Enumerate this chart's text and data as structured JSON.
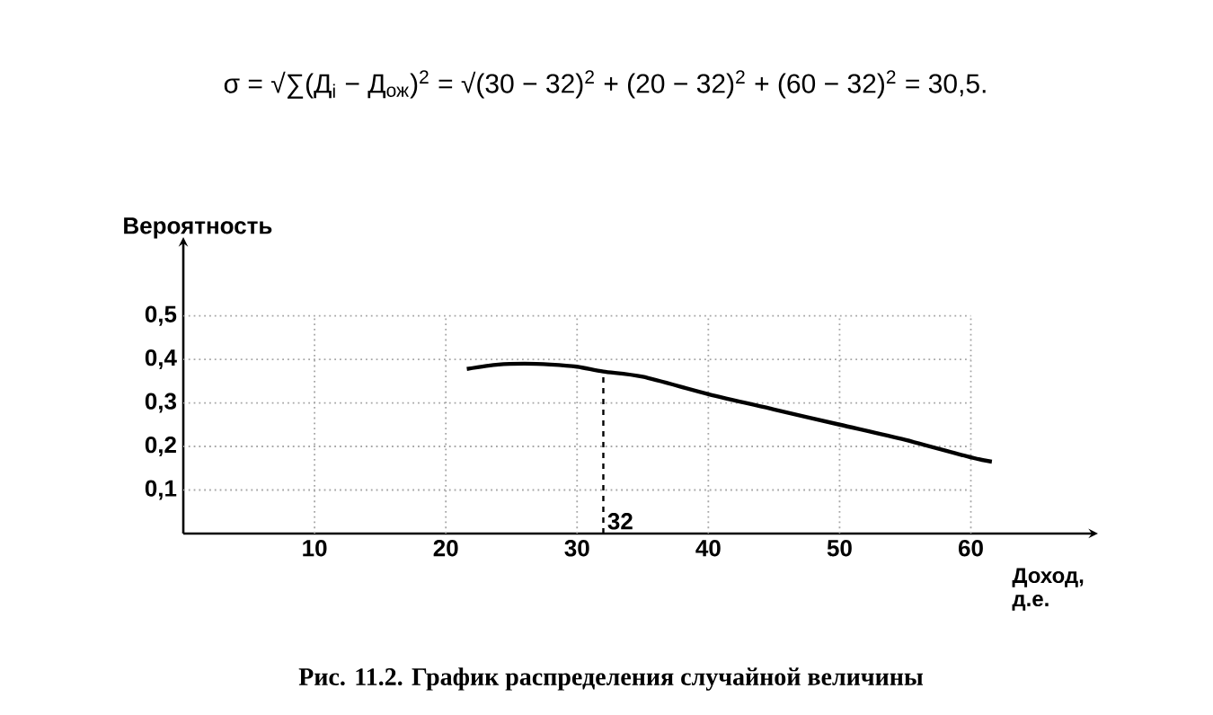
{
  "chart_data": {
    "type": "line",
    "annotations": [
      "σ = √∑(Д$_{i}$ − Д$_{ож}$)$^{2}$ = √(30 − 32)$^{2}$ + (20 − 32)$^{2}$ + (60 − 32)$^{2}$ = 30,5.",
      "Рис. 11.2. График распределения случайной величины"
    ],
    "xlabel": "Доход, д.е.",
    "ylabel": "Вероятность",
    "series": [
      {
        "color": "#000000",
        "x": [
          21.6,
          24,
          26,
          28,
          30,
          32,
          35,
          40,
          45,
          50,
          55,
          60,
          61.6
        ],
        "values": [
          0.378,
          0.388,
          0.39,
          0.388,
          0.383,
          0.372,
          0.36,
          0.32,
          0.285,
          0.25,
          0.215,
          0.175,
          0.165
        ]
      }
    ],
    "xlim": [
      0,
      69
    ],
    "ylim": [
      0,
      0.66
    ],
    "xticks": [
      10,
      20,
      30,
      40,
      50,
      60
    ],
    "yticks": [
      {
        "value": 0.1,
        "label": "0,1"
      },
      {
        "value": 0.2,
        "label": "0,2"
      },
      {
        "value": 0.3,
        "label": "0,3"
      },
      {
        "value": 0.4,
        "label": "0,4"
      },
      {
        "value": 0.5,
        "label": "0,5"
      }
    ],
    "ref_lines": [
      {
        "axis": "x",
        "value": 32,
        "label": "32",
        "line_style": "dashed"
      }
    ],
    "grid": true
  }
}
